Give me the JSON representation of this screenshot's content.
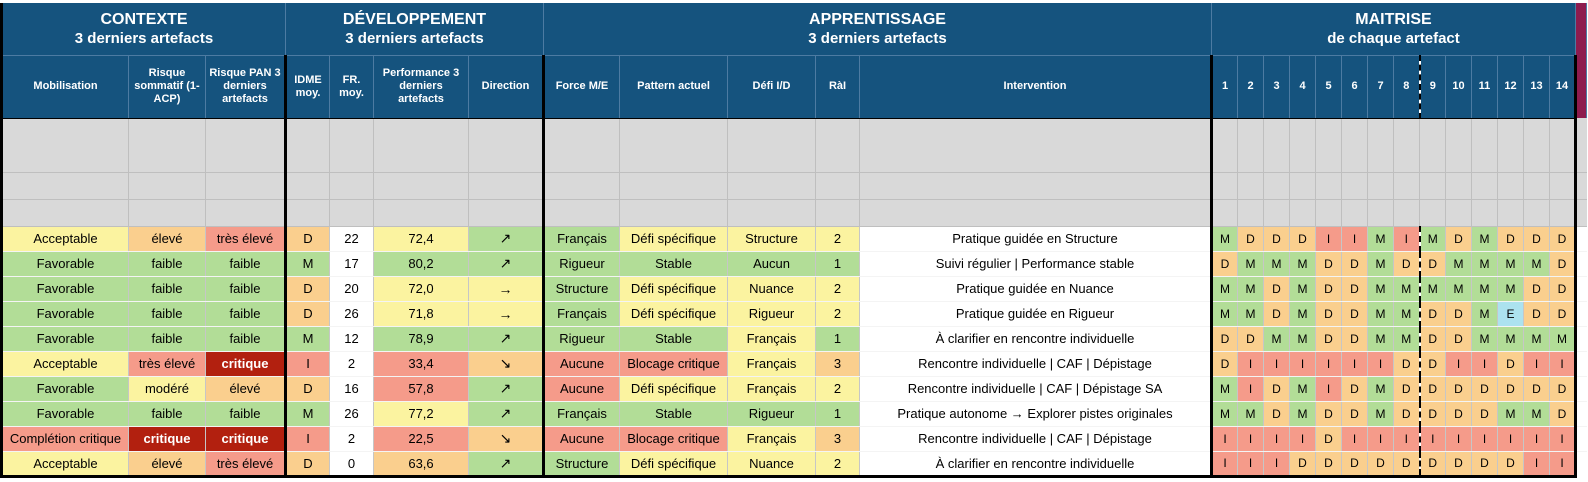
{
  "theme": {
    "header_bg": "#15537E",
    "header_text": "#FFFFFF",
    "gray_row": "#D9D9D9",
    "grid_line": "#BFBFBF",
    "maroon_strip": "#8E1B4E",
    "darkred": "#B2200F"
  },
  "palette": {
    "yellow": "#FBF3A0",
    "green": "#B2DD97",
    "orange": "#FACF8E",
    "salmon": "#F59B8A",
    "darkred": "#B2200F",
    "cyan": "#ACE2EF",
    "white": "#FFFFFF"
  },
  "letter_colors": {
    "M": "green",
    "D": "orange",
    "I": "salmon",
    "E": "cyan"
  },
  "sections": [
    {
      "title": "CONTEXTE",
      "subtitle": "3 derniers artefacts",
      "span": 3
    },
    {
      "title": "DÉVELOPPEMENT",
      "subtitle": "3 derniers artefacts",
      "span": 4
    },
    {
      "title": "APPRENTISSAGE",
      "subtitle": "3 derniers artefacts",
      "span": 5
    },
    {
      "title": "MAITRISE",
      "subtitle": "de chaque artefact",
      "span": 14
    }
  ],
  "columns": [
    {
      "key": "mobilisation",
      "label": "Mobilisation"
    },
    {
      "key": "risque_sommatif",
      "label": "Risque sommatif (1-ACP)"
    },
    {
      "key": "risque_pan",
      "label": "Risque PAN 3 derniers artefacts"
    },
    {
      "key": "idme",
      "label": "IDME moy."
    },
    {
      "key": "fr",
      "label": "FR. moy."
    },
    {
      "key": "performance",
      "label": "Performance 3 derniers artefacts"
    },
    {
      "key": "direction",
      "label": "Direction"
    },
    {
      "key": "force",
      "label": "Force M/E"
    },
    {
      "key": "pattern",
      "label": "Pattern actuel"
    },
    {
      "key": "defi",
      "label": "Défi I/D"
    },
    {
      "key": "rai",
      "label": "RàI"
    },
    {
      "key": "intervention",
      "label": "Intervention"
    }
  ],
  "maitrise_columns": [
    "1",
    "2",
    "3",
    "4",
    "5",
    "6",
    "7",
    "8",
    "9",
    "10",
    "11",
    "12",
    "13",
    "14"
  ],
  "empty_row_count": 3,
  "rows": [
    {
      "mobilisation": {
        "text": "Acceptable",
        "c": "yellow"
      },
      "risque_sommatif": {
        "text": "élevé",
        "c": "orange"
      },
      "risque_pan": {
        "text": "très élevé",
        "c": "salmon"
      },
      "idme": {
        "text": "D",
        "c": "orange"
      },
      "fr": {
        "text": "22",
        "c": "white"
      },
      "performance": {
        "text": "72,4",
        "c": "yellow"
      },
      "direction": {
        "text": "↗",
        "c": "green"
      },
      "force": {
        "text": "Français",
        "c": "green"
      },
      "pattern": {
        "text": "Défi spécifique",
        "c": "yellow"
      },
      "defi": {
        "text": "Structure",
        "c": "yellow"
      },
      "rai": {
        "text": "2",
        "c": "yellow"
      },
      "intervention": {
        "text": "Pratique guidée en Structure",
        "c": "white"
      },
      "maitrise": [
        "M",
        "D",
        "D",
        "D",
        "I",
        "I",
        "M",
        "I",
        "M",
        "D",
        "M",
        "D",
        "D",
        "D"
      ]
    },
    {
      "mobilisation": {
        "text": "Favorable",
        "c": "green"
      },
      "risque_sommatif": {
        "text": "faible",
        "c": "green"
      },
      "risque_pan": {
        "text": "faible",
        "c": "green"
      },
      "idme": {
        "text": "M",
        "c": "green"
      },
      "fr": {
        "text": "17",
        "c": "white"
      },
      "performance": {
        "text": "80,2",
        "c": "green"
      },
      "direction": {
        "text": "↗",
        "c": "green"
      },
      "force": {
        "text": "Rigueur",
        "c": "green"
      },
      "pattern": {
        "text": "Stable",
        "c": "green"
      },
      "defi": {
        "text": "Aucun",
        "c": "green"
      },
      "rai": {
        "text": "1",
        "c": "green"
      },
      "intervention": {
        "text": "Suivi régulier | Performance stable",
        "c": "white"
      },
      "maitrise": [
        "D",
        "M",
        "M",
        "M",
        "D",
        "D",
        "M",
        "D",
        "D",
        "M",
        "M",
        "M",
        "M",
        "D"
      ]
    },
    {
      "mobilisation": {
        "text": "Favorable",
        "c": "green"
      },
      "risque_sommatif": {
        "text": "faible",
        "c": "green"
      },
      "risque_pan": {
        "text": "faible",
        "c": "green"
      },
      "idme": {
        "text": "D",
        "c": "orange"
      },
      "fr": {
        "text": "20",
        "c": "white"
      },
      "performance": {
        "text": "72,0",
        "c": "yellow"
      },
      "direction": {
        "text": "→",
        "c": "yellow"
      },
      "force": {
        "text": "Structure",
        "c": "green"
      },
      "pattern": {
        "text": "Défi spécifique",
        "c": "yellow"
      },
      "defi": {
        "text": "Nuance",
        "c": "yellow"
      },
      "rai": {
        "text": "2",
        "c": "yellow"
      },
      "intervention": {
        "text": "Pratique guidée en Nuance",
        "c": "white"
      },
      "maitrise": [
        "M",
        "M",
        "D",
        "M",
        "D",
        "D",
        "M",
        "M",
        "M",
        "M",
        "M",
        "M",
        "D",
        "D"
      ]
    },
    {
      "mobilisation": {
        "text": "Favorable",
        "c": "green"
      },
      "risque_sommatif": {
        "text": "faible",
        "c": "green"
      },
      "risque_pan": {
        "text": "faible",
        "c": "green"
      },
      "idme": {
        "text": "D",
        "c": "orange"
      },
      "fr": {
        "text": "26",
        "c": "white"
      },
      "performance": {
        "text": "71,8",
        "c": "yellow"
      },
      "direction": {
        "text": "→",
        "c": "yellow"
      },
      "force": {
        "text": "Français",
        "c": "green"
      },
      "pattern": {
        "text": "Défi spécifique",
        "c": "yellow"
      },
      "defi": {
        "text": "Rigueur",
        "c": "yellow"
      },
      "rai": {
        "text": "2",
        "c": "yellow"
      },
      "intervention": {
        "text": "Pratique guidée en Rigueur",
        "c": "white"
      },
      "maitrise": [
        "M",
        "M",
        "D",
        "M",
        "D",
        "D",
        "M",
        "M",
        "D",
        "D",
        "M",
        "E",
        "D",
        "D"
      ]
    },
    {
      "mobilisation": {
        "text": "Favorable",
        "c": "green"
      },
      "risque_sommatif": {
        "text": "faible",
        "c": "green"
      },
      "risque_pan": {
        "text": "faible",
        "c": "green"
      },
      "idme": {
        "text": "M",
        "c": "green"
      },
      "fr": {
        "text": "12",
        "c": "white"
      },
      "performance": {
        "text": "78,9",
        "c": "green"
      },
      "direction": {
        "text": "↗",
        "c": "green"
      },
      "force": {
        "text": "Rigueur",
        "c": "green"
      },
      "pattern": {
        "text": "Stable",
        "c": "green"
      },
      "defi": {
        "text": "Français",
        "c": "yellow"
      },
      "rai": {
        "text": "1",
        "c": "green"
      },
      "intervention": {
        "text": "À clarifier en rencontre individuelle",
        "c": "white"
      },
      "maitrise": [
        "D",
        "D",
        "M",
        "M",
        "D",
        "D",
        "M",
        "M",
        "D",
        "D",
        "M",
        "M",
        "M",
        "M"
      ]
    },
    {
      "mobilisation": {
        "text": "Acceptable",
        "c": "yellow"
      },
      "risque_sommatif": {
        "text": "très élevé",
        "c": "salmon"
      },
      "risque_pan": {
        "text": "critique",
        "c": "darkred"
      },
      "idme": {
        "text": "I",
        "c": "salmon"
      },
      "fr": {
        "text": "2",
        "c": "white"
      },
      "performance": {
        "text": "33,4",
        "c": "salmon"
      },
      "direction": {
        "text": "↘",
        "c": "orange"
      },
      "force": {
        "text": "Aucune",
        "c": "salmon"
      },
      "pattern": {
        "text": "Blocage critique",
        "c": "salmon"
      },
      "defi": {
        "text": "Français",
        "c": "yellow"
      },
      "rai": {
        "text": "3",
        "c": "orange"
      },
      "intervention": {
        "text": "Rencontre individuelle | CAF | Dépistage",
        "c": "white"
      },
      "maitrise": [
        "D",
        "I",
        "I",
        "I",
        "I",
        "I",
        "I",
        "D",
        "D",
        "I",
        "I",
        "D",
        "I",
        "I"
      ]
    },
    {
      "mobilisation": {
        "text": "Favorable",
        "c": "green"
      },
      "risque_sommatif": {
        "text": "modéré",
        "c": "yellow"
      },
      "risque_pan": {
        "text": "élevé",
        "c": "orange"
      },
      "idme": {
        "text": "D",
        "c": "orange"
      },
      "fr": {
        "text": "16",
        "c": "white"
      },
      "performance": {
        "text": "57,8",
        "c": "salmon"
      },
      "direction": {
        "text": "↗",
        "c": "green"
      },
      "force": {
        "text": "Aucune",
        "c": "salmon"
      },
      "pattern": {
        "text": "Défi spécifique",
        "c": "yellow"
      },
      "defi": {
        "text": "Français",
        "c": "yellow"
      },
      "rai": {
        "text": "2",
        "c": "yellow"
      },
      "intervention": {
        "text": "Rencontre individuelle | CAF | Dépistage SA",
        "c": "white"
      },
      "maitrise": [
        "M",
        "I",
        "D",
        "M",
        "I",
        "D",
        "M",
        "D",
        "D",
        "D",
        "D",
        "D",
        "D",
        "D"
      ]
    },
    {
      "mobilisation": {
        "text": "Favorable",
        "c": "green"
      },
      "risque_sommatif": {
        "text": "faible",
        "c": "green"
      },
      "risque_pan": {
        "text": "faible",
        "c": "green"
      },
      "idme": {
        "text": "M",
        "c": "green"
      },
      "fr": {
        "text": "26",
        "c": "white"
      },
      "performance": {
        "text": "77,2",
        "c": "yellow"
      },
      "direction": {
        "text": "↗",
        "c": "green"
      },
      "force": {
        "text": "Français",
        "c": "green"
      },
      "pattern": {
        "text": "Stable",
        "c": "green"
      },
      "defi": {
        "text": "Rigueur",
        "c": "green"
      },
      "rai": {
        "text": "1",
        "c": "green"
      },
      "intervention": {
        "text": "Pratique autonome → Explorer pistes originales",
        "c": "white"
      },
      "maitrise": [
        "M",
        "M",
        "D",
        "M",
        "D",
        "D",
        "M",
        "D",
        "D",
        "D",
        "D",
        "M",
        "M",
        "D"
      ]
    },
    {
      "mobilisation": {
        "text": "Complétion critique",
        "c": "salmon"
      },
      "risque_sommatif": {
        "text": "critique",
        "c": "darkred"
      },
      "risque_pan": {
        "text": "critique",
        "c": "darkred"
      },
      "idme": {
        "text": "I",
        "c": "salmon"
      },
      "fr": {
        "text": "2",
        "c": "white"
      },
      "performance": {
        "text": "22,5",
        "c": "salmon"
      },
      "direction": {
        "text": "↘",
        "c": "orange"
      },
      "force": {
        "text": "Aucune",
        "c": "salmon"
      },
      "pattern": {
        "text": "Blocage critique",
        "c": "salmon"
      },
      "defi": {
        "text": "Français",
        "c": "yellow"
      },
      "rai": {
        "text": "3",
        "c": "orange"
      },
      "intervention": {
        "text": "Rencontre individuelle | CAF | Dépistage",
        "c": "white"
      },
      "maitrise": [
        "I",
        "I",
        "I",
        "I",
        "D",
        "I",
        "I",
        "I",
        "I",
        "I",
        "I",
        "I",
        "I",
        "I"
      ]
    },
    {
      "mobilisation": {
        "text": "Acceptable",
        "c": "yellow"
      },
      "risque_sommatif": {
        "text": "élevé",
        "c": "orange"
      },
      "risque_pan": {
        "text": "très élevé",
        "c": "salmon"
      },
      "idme": {
        "text": "D",
        "c": "orange"
      },
      "fr": {
        "text": "0",
        "c": "white"
      },
      "performance": {
        "text": "63,6",
        "c": "orange"
      },
      "direction": {
        "text": "↗",
        "c": "green"
      },
      "force": {
        "text": "Structure",
        "c": "green"
      },
      "pattern": {
        "text": "Défi spécifique",
        "c": "yellow"
      },
      "defi": {
        "text": "Nuance",
        "c": "yellow"
      },
      "rai": {
        "text": "2",
        "c": "yellow"
      },
      "intervention": {
        "text": "À clarifier en rencontre individuelle",
        "c": "white"
      },
      "maitrise": [
        "I",
        "I",
        "I",
        "D",
        "D",
        "D",
        "D",
        "D",
        "D",
        "D",
        "D",
        "D",
        "I",
        "I"
      ]
    }
  ]
}
